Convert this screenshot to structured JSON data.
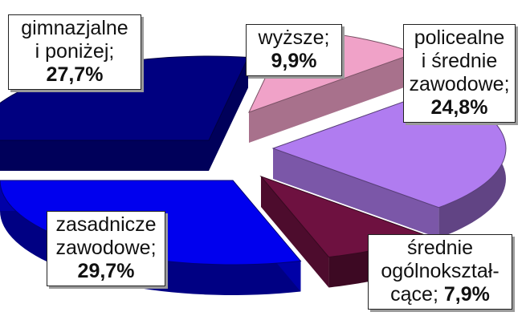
{
  "chart_data": {
    "type": "pie",
    "title": "",
    "categories": [
      "gimnazjalne i poniżej",
      "wyższe",
      "policealne i średnie zawodowe",
      "średnie ogólnokształ-cące",
      "zasadnicze zawodowe"
    ],
    "values": [
      27.7,
      9.9,
      24.8,
      7.9,
      29.7
    ],
    "value_labels": [
      "27,7%",
      "9,9%",
      "24,8%",
      "7,9%",
      "29,7%"
    ],
    "colors": [
      "#000080",
      "#f0a2c8",
      "#b07cf0",
      "#6e1140",
      "#0000ee"
    ],
    "style": "3d-exploded",
    "legend": "none",
    "grid": false
  },
  "labels": [
    {
      "lines": [
        "gimnazjalne",
        "i poniżej;"
      ],
      "pct": "27,7%"
    },
    {
      "lines": [
        "wyższe;"
      ],
      "pct": "9,9%"
    },
    {
      "lines": [
        "policealne",
        "i średnie",
        "zawodowe;"
      ],
      "pct": "24,8%"
    },
    {
      "lines": [
        "średnie",
        "ogólnokształ-"
      ],
      "last": "cące; ",
      "pct": "7,9%"
    },
    {
      "lines": [
        "zasadnicze",
        "zawodowe;"
      ],
      "pct": "29,7%"
    }
  ]
}
